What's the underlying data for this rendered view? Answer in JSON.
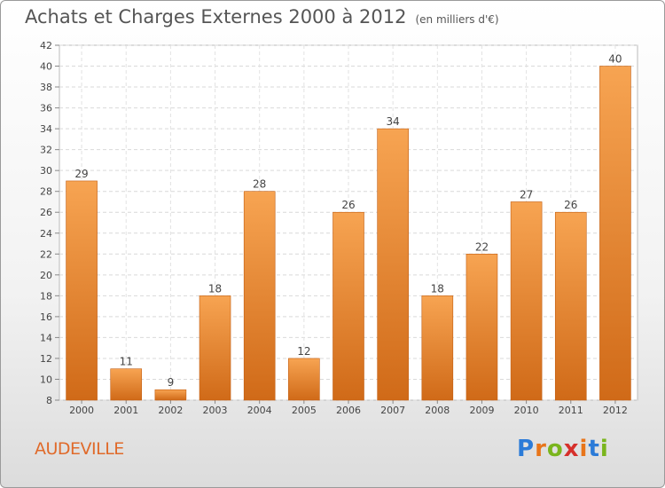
{
  "title": "Achats et Charges Externes 2000 à 2012",
  "unit": "(en milliers d'€)",
  "location": "AUDEVILLE",
  "logo": {
    "letters": [
      "P",
      "r",
      "o",
      "x",
      "i",
      "t",
      "i"
    ],
    "colors": [
      "#2b7bd8",
      "#e8751a",
      "#7ab51d",
      "#d6302b",
      "#e8751a",
      "#2b7bd8",
      "#7ab51d"
    ]
  },
  "chart_data": {
    "type": "bar",
    "categories": [
      "2000",
      "2001",
      "2002",
      "2003",
      "2004",
      "2005",
      "2006",
      "2007",
      "2008",
      "2009",
      "2010",
      "2011",
      "2012"
    ],
    "values": [
      29,
      11,
      9,
      18,
      28,
      12,
      26,
      34,
      18,
      22,
      27,
      26,
      40
    ],
    "ylim": [
      8,
      42
    ],
    "yticks": [
      8,
      10,
      12,
      14,
      16,
      18,
      20,
      22,
      24,
      26,
      28,
      30,
      32,
      34,
      36,
      38,
      40,
      42
    ],
    "grid": true,
    "bar_color": "#f0913a"
  }
}
